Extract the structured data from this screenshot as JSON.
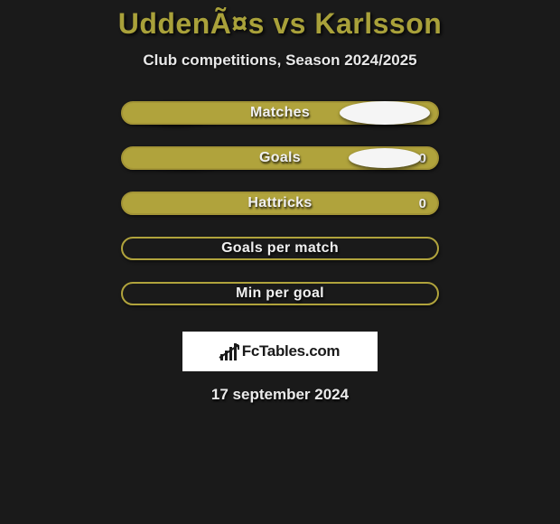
{
  "title": "UddenÃ¤s vs Karlsson",
  "title_color": "#a9a13a",
  "subtitle": "Club competitions, Season 2024/2025",
  "background_color": "#1a1a1a",
  "bar_fill": "#b0a33c",
  "bar_border": "#a39436",
  "bar_empty_border": "#b0a33c",
  "pill_color": "#f5f5f5",
  "rows": [
    {
      "label": "Matches",
      "left_val": "",
      "right_val": "",
      "filled": true,
      "show_left_pill": true,
      "show_right_pill": true,
      "pill_size": "big"
    },
    {
      "label": "Goals",
      "left_val": "",
      "right_val": "0",
      "filled": true,
      "show_left_pill": true,
      "show_right_pill": true,
      "pill_size": "small"
    },
    {
      "label": "Hattricks",
      "left_val": "",
      "right_val": "0",
      "filled": true,
      "show_left_pill": false,
      "show_right_pill": false,
      "pill_size": "small"
    },
    {
      "label": "Goals per match",
      "left_val": "",
      "right_val": "",
      "filled": false,
      "show_left_pill": false,
      "show_right_pill": false,
      "pill_size": "small"
    },
    {
      "label": "Min per goal",
      "left_val": "",
      "right_val": "",
      "filled": false,
      "show_left_pill": false,
      "show_right_pill": false,
      "pill_size": "small"
    }
  ],
  "logo_text": "FcTables.com",
  "date": "17 september 2024"
}
